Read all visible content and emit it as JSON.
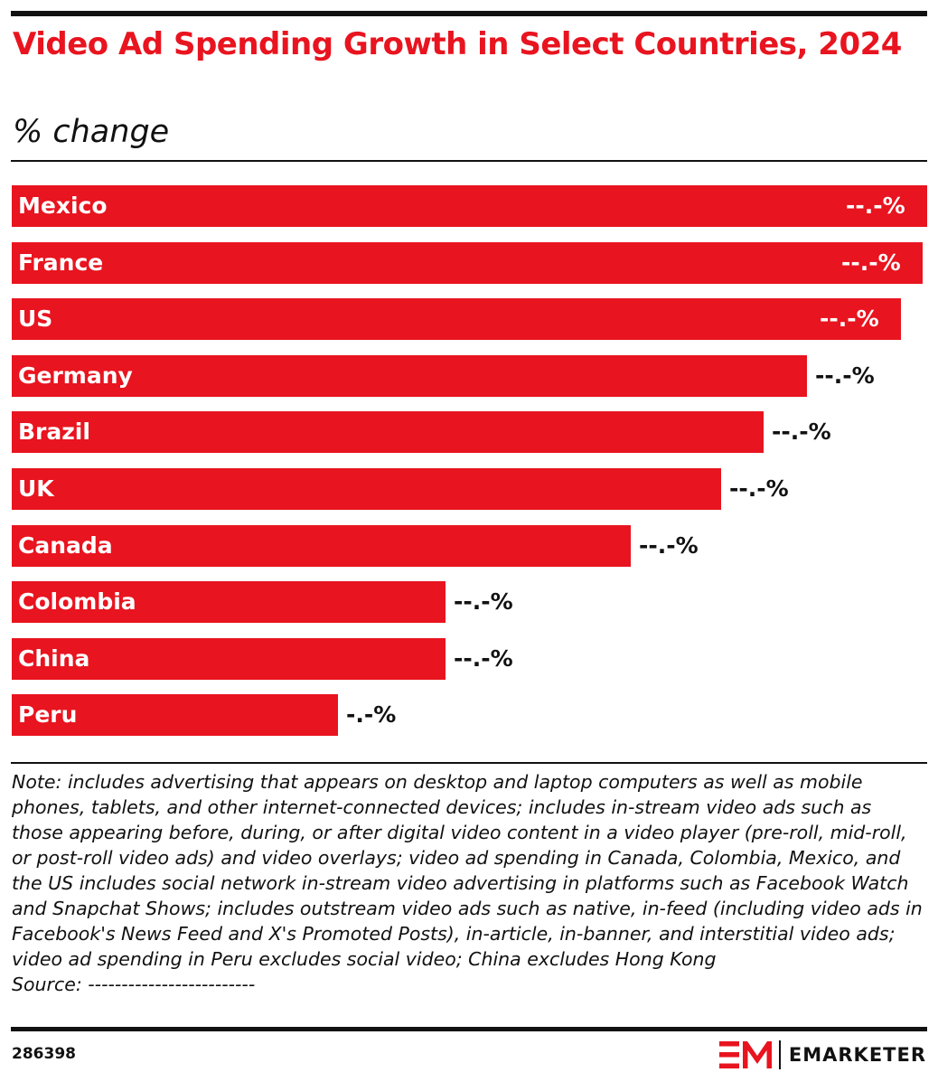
{
  "header": {
    "title": "Video Ad Spending Growth in Select Countries, 2024",
    "subtitle": "% change"
  },
  "chart_data": {
    "type": "bar",
    "orientation": "horizontal",
    "title": "Video Ad Spending Growth in Select Countries, 2024",
    "subtitle": "% change",
    "categories": [
      "Mexico",
      "France",
      "US",
      "Germany",
      "Brazil",
      "UK",
      "Canada",
      "Colombia",
      "China",
      "Peru"
    ],
    "values": [
      21.3,
      21.2,
      20.7,
      18.5,
      17.5,
      16.5,
      14.4,
      10.1,
      10.1,
      7.6
    ],
    "value_labels": [
      "--.-%",
      "--.-%",
      "--.-%",
      "--.-%",
      "--.-%",
      "--.-%",
      "--.-%",
      "--.-%",
      "--.-%",
      "-.-%"
    ],
    "xlim": [
      0,
      21.3
    ],
    "grid": false,
    "legend": "none",
    "bar_color": "#e8141f"
  },
  "note": "Note: includes advertising that appears on desktop and laptop computers as well as mobile phones, tablets, and other internet-connected devices; includes in-stream video ads such as those appearing before, during, or after digital video content in a video player (pre-roll, mid-roll, or post-roll video ads) and video overlays; video ad spending in Canada, Colombia, Mexico, and the US includes social network in-stream video advertising in platforms such as Facebook Watch and Snapchat Shows; includes outstream video ads such as native, in-feed (including video ads in Facebook's News Feed and X's Promoted Posts), in-article, in-banner, and interstitial video ads; video ad spending in Peru excludes social video; China excludes Hong Kong",
  "source": "Source: -------------------------",
  "footer": {
    "chart_id": "286398",
    "brand": "EMARKETER"
  },
  "colors": {
    "accent": "#e8141f",
    "text": "#111111"
  }
}
